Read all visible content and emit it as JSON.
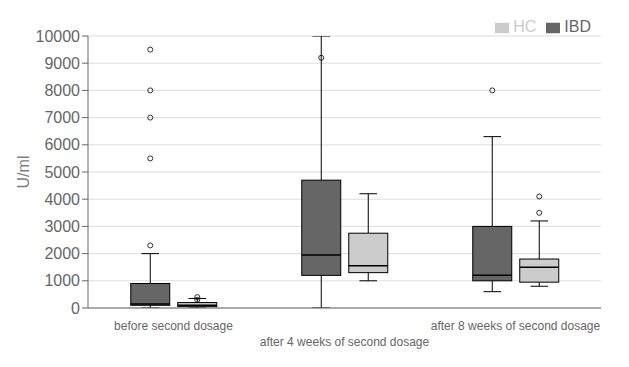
{
  "chart_data": {
    "type": "box",
    "ylabel": "U/ml",
    "categories": [
      "before second dosage",
      "after 4 weeks of second dosage",
      "after 8 weeks of second dosage"
    ],
    "series": [
      {
        "name": "IBD",
        "color": "#666666",
        "values": [
          {
            "whislo": 0,
            "q1": 100,
            "med": 150,
            "q3": 900,
            "whishi": 2000,
            "fliers": [
              2300,
              5500,
              7000,
              8000,
              9500
            ]
          },
          {
            "whislo": 0,
            "q1": 1200,
            "med": 1950,
            "q3": 4700,
            "whishi": 10000,
            "fliers": [
              9200
            ]
          },
          {
            "whislo": 600,
            "q1": 1000,
            "med": 1200,
            "q3": 3000,
            "whishi": 6300,
            "fliers": [
              8000
            ]
          }
        ]
      },
      {
        "name": "HC",
        "color": "#cccccc",
        "values": [
          {
            "whislo": 0,
            "q1": 50,
            "med": 100,
            "q3": 200,
            "whishi": 350,
            "fliers": [
              300,
              400
            ]
          },
          {
            "whislo": 1000,
            "q1": 1300,
            "med": 1550,
            "q3": 2750,
            "whishi": 4200,
            "fliers": []
          },
          {
            "whislo": 800,
            "q1": 950,
            "med": 1500,
            "q3": 1800,
            "whishi": 3200,
            "fliers": [
              3500,
              4100
            ]
          }
        ]
      }
    ],
    "ylim": [
      0,
      10000
    ],
    "yticks": [
      0,
      1000,
      2000,
      3000,
      4000,
      5000,
      6000,
      7000,
      8000,
      9000,
      10000
    ],
    "grid": true,
    "legend": "upper right"
  }
}
